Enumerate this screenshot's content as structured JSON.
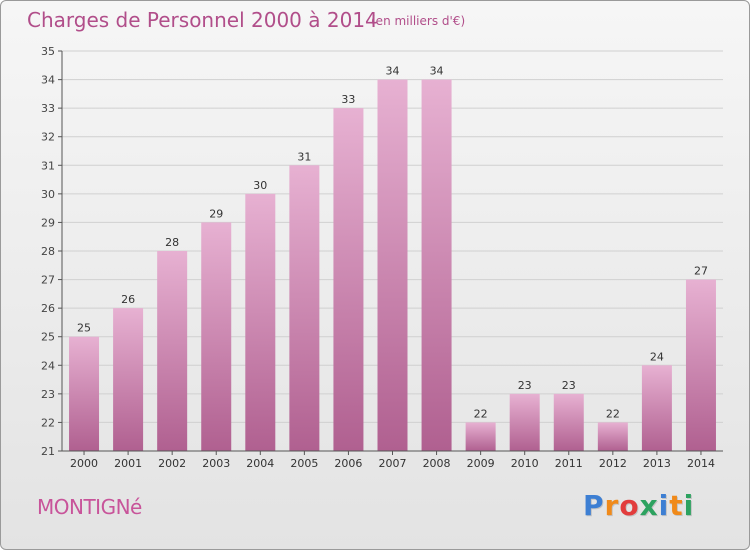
{
  "title": "Charges de Personnel 2000 à 2014",
  "subtitle": "(en milliers d'€)",
  "commune": "MONTIGNé",
  "brand": {
    "text": "Proxiti",
    "colors": [
      "#3d7fd3",
      "#f08a1a",
      "#e23c3c",
      "#2ca25f",
      "#3d7fd3",
      "#f08a1a",
      "#2ca25f"
    ]
  },
  "colors": {
    "bar_top": "#e7b1d2",
    "bar_bottom": "#b06090",
    "title": "#b14e8a",
    "axis": "#555555"
  },
  "chart_data": {
    "type": "bar",
    "title": "Charges de Personnel 2000 à 2014",
    "xlabel": "",
    "ylabel": "",
    "ylim": [
      21,
      35
    ],
    "yticks": [
      21,
      22,
      23,
      24,
      25,
      26,
      27,
      28,
      29,
      30,
      31,
      32,
      33,
      34,
      35
    ],
    "grid": true,
    "categories": [
      "2000",
      "2001",
      "2002",
      "2003",
      "2004",
      "2005",
      "2006",
      "2007",
      "2008",
      "2009",
      "2010",
      "2011",
      "2012",
      "2013",
      "2014"
    ],
    "values": [
      25,
      26,
      28,
      29,
      30,
      31,
      33,
      34,
      34,
      22,
      23,
      23,
      22,
      24,
      27
    ]
  }
}
